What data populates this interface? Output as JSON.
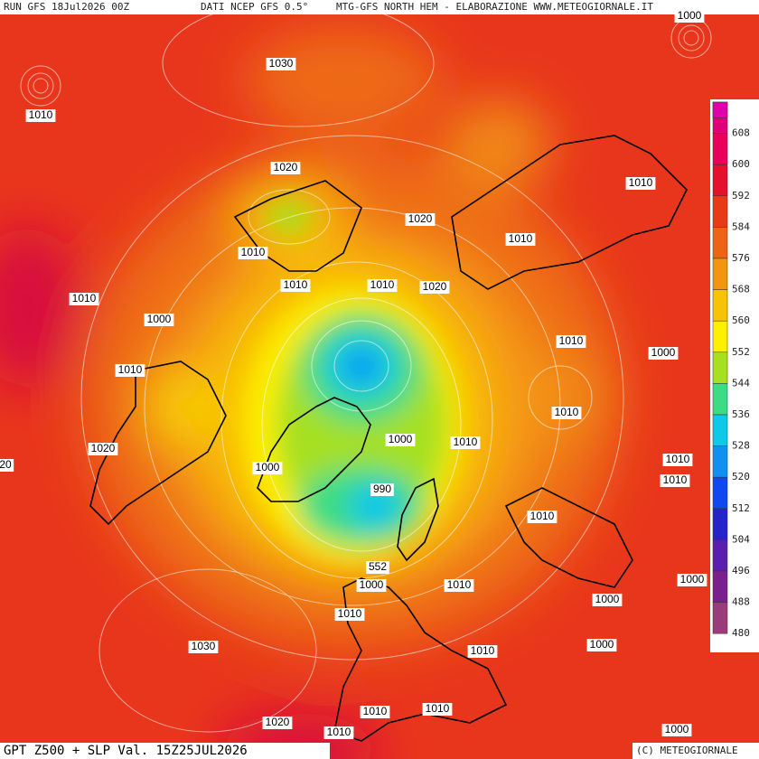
{
  "header": {
    "run": "RUN GFS 18Jul2026 00Z",
    "source": "DATI NCEP GFS 0.5°",
    "credit": "MTG-GFS NORTH HEM - ELABORAZIONE WWW.METEOGIORNALE.IT"
  },
  "footer": {
    "product": "GPT Z500 + SLP Val. 15Z25JUL2026",
    "copyright": "(C) METEOGIORNALE"
  },
  "legend": {
    "labels": [
      "608",
      "600",
      "592",
      "584",
      "576",
      "568",
      "560",
      "552",
      "544",
      "536",
      "528",
      "520",
      "512",
      "504",
      "496",
      "488",
      "480"
    ],
    "colors": [
      "#e0007a",
      "#e8005a",
      "#e4102c",
      "#e83a14",
      "#ee6414",
      "#f49412",
      "#f8c206",
      "#fff000",
      "#a6e020",
      "#3cdc84",
      "#10c8e8",
      "#1090f0",
      "#1048f0",
      "#2424c8",
      "#5a1eb0",
      "#7a208e",
      "#9a3c7c"
    ]
  },
  "isobar_labels": [
    "1000",
    "1030",
    "1010",
    "1020",
    "1020",
    "1010",
    "1010",
    "1010",
    "1010",
    "1010",
    "1010",
    "1020",
    "1000",
    "1010",
    "1000",
    "1010",
    "1010",
    "1000",
    "1010",
    "1020",
    "20",
    "1000",
    "990",
    "1010",
    "1010",
    "1010",
    "552",
    "1000",
    "1010",
    "1000",
    "1000",
    "1010",
    "1030",
    "1010",
    "1000",
    "1010",
    "1010",
    "1020",
    "1010",
    "1000"
  ]
}
